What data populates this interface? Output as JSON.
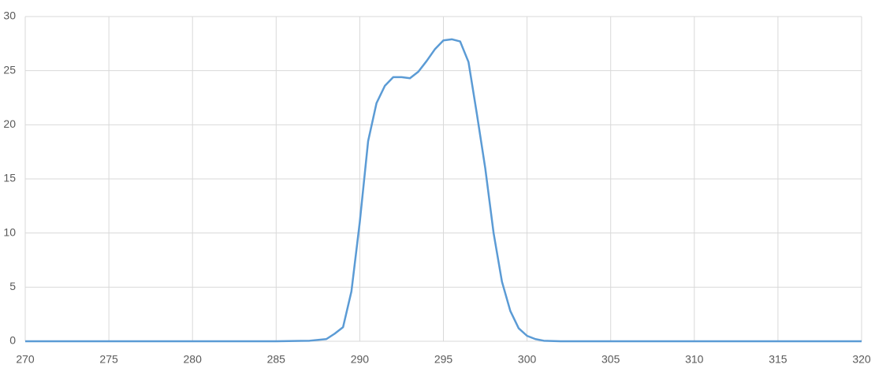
{
  "chart_data": {
    "type": "line",
    "series": [
      {
        "color": "#5b9bd5",
        "x": [
          270,
          285,
          287,
          288,
          288.5,
          289,
          289.5,
          290,
          290.5,
          291,
          291.5,
          292,
          292.5,
          293,
          293.5,
          294,
          294.5,
          295,
          295.5,
          296,
          296.5,
          297,
          297.5,
          298,
          298.5,
          299,
          299.5,
          300,
          300.5,
          301,
          302,
          320
        ],
        "values": [
          0,
          0,
          0.05,
          0.2,
          0.7,
          1.3,
          4.6,
          11,
          18.5,
          22,
          23.6,
          24.4,
          24.4,
          24.3,
          24.9,
          25.9,
          27,
          27.8,
          27.9,
          27.7,
          25.8,
          21,
          16,
          10,
          5.5,
          2.8,
          1.2,
          0.5,
          0.2,
          0.05,
          0,
          0
        ]
      }
    ],
    "xlim": [
      270,
      320
    ],
    "xticks": [
      270,
      275,
      280,
      285,
      290,
      295,
      300,
      305,
      310,
      315,
      320
    ],
    "ylim": [
      0,
      30
    ],
    "yticks": [
      0,
      5,
      10,
      15,
      20,
      25,
      30
    ],
    "grid": true
  }
}
